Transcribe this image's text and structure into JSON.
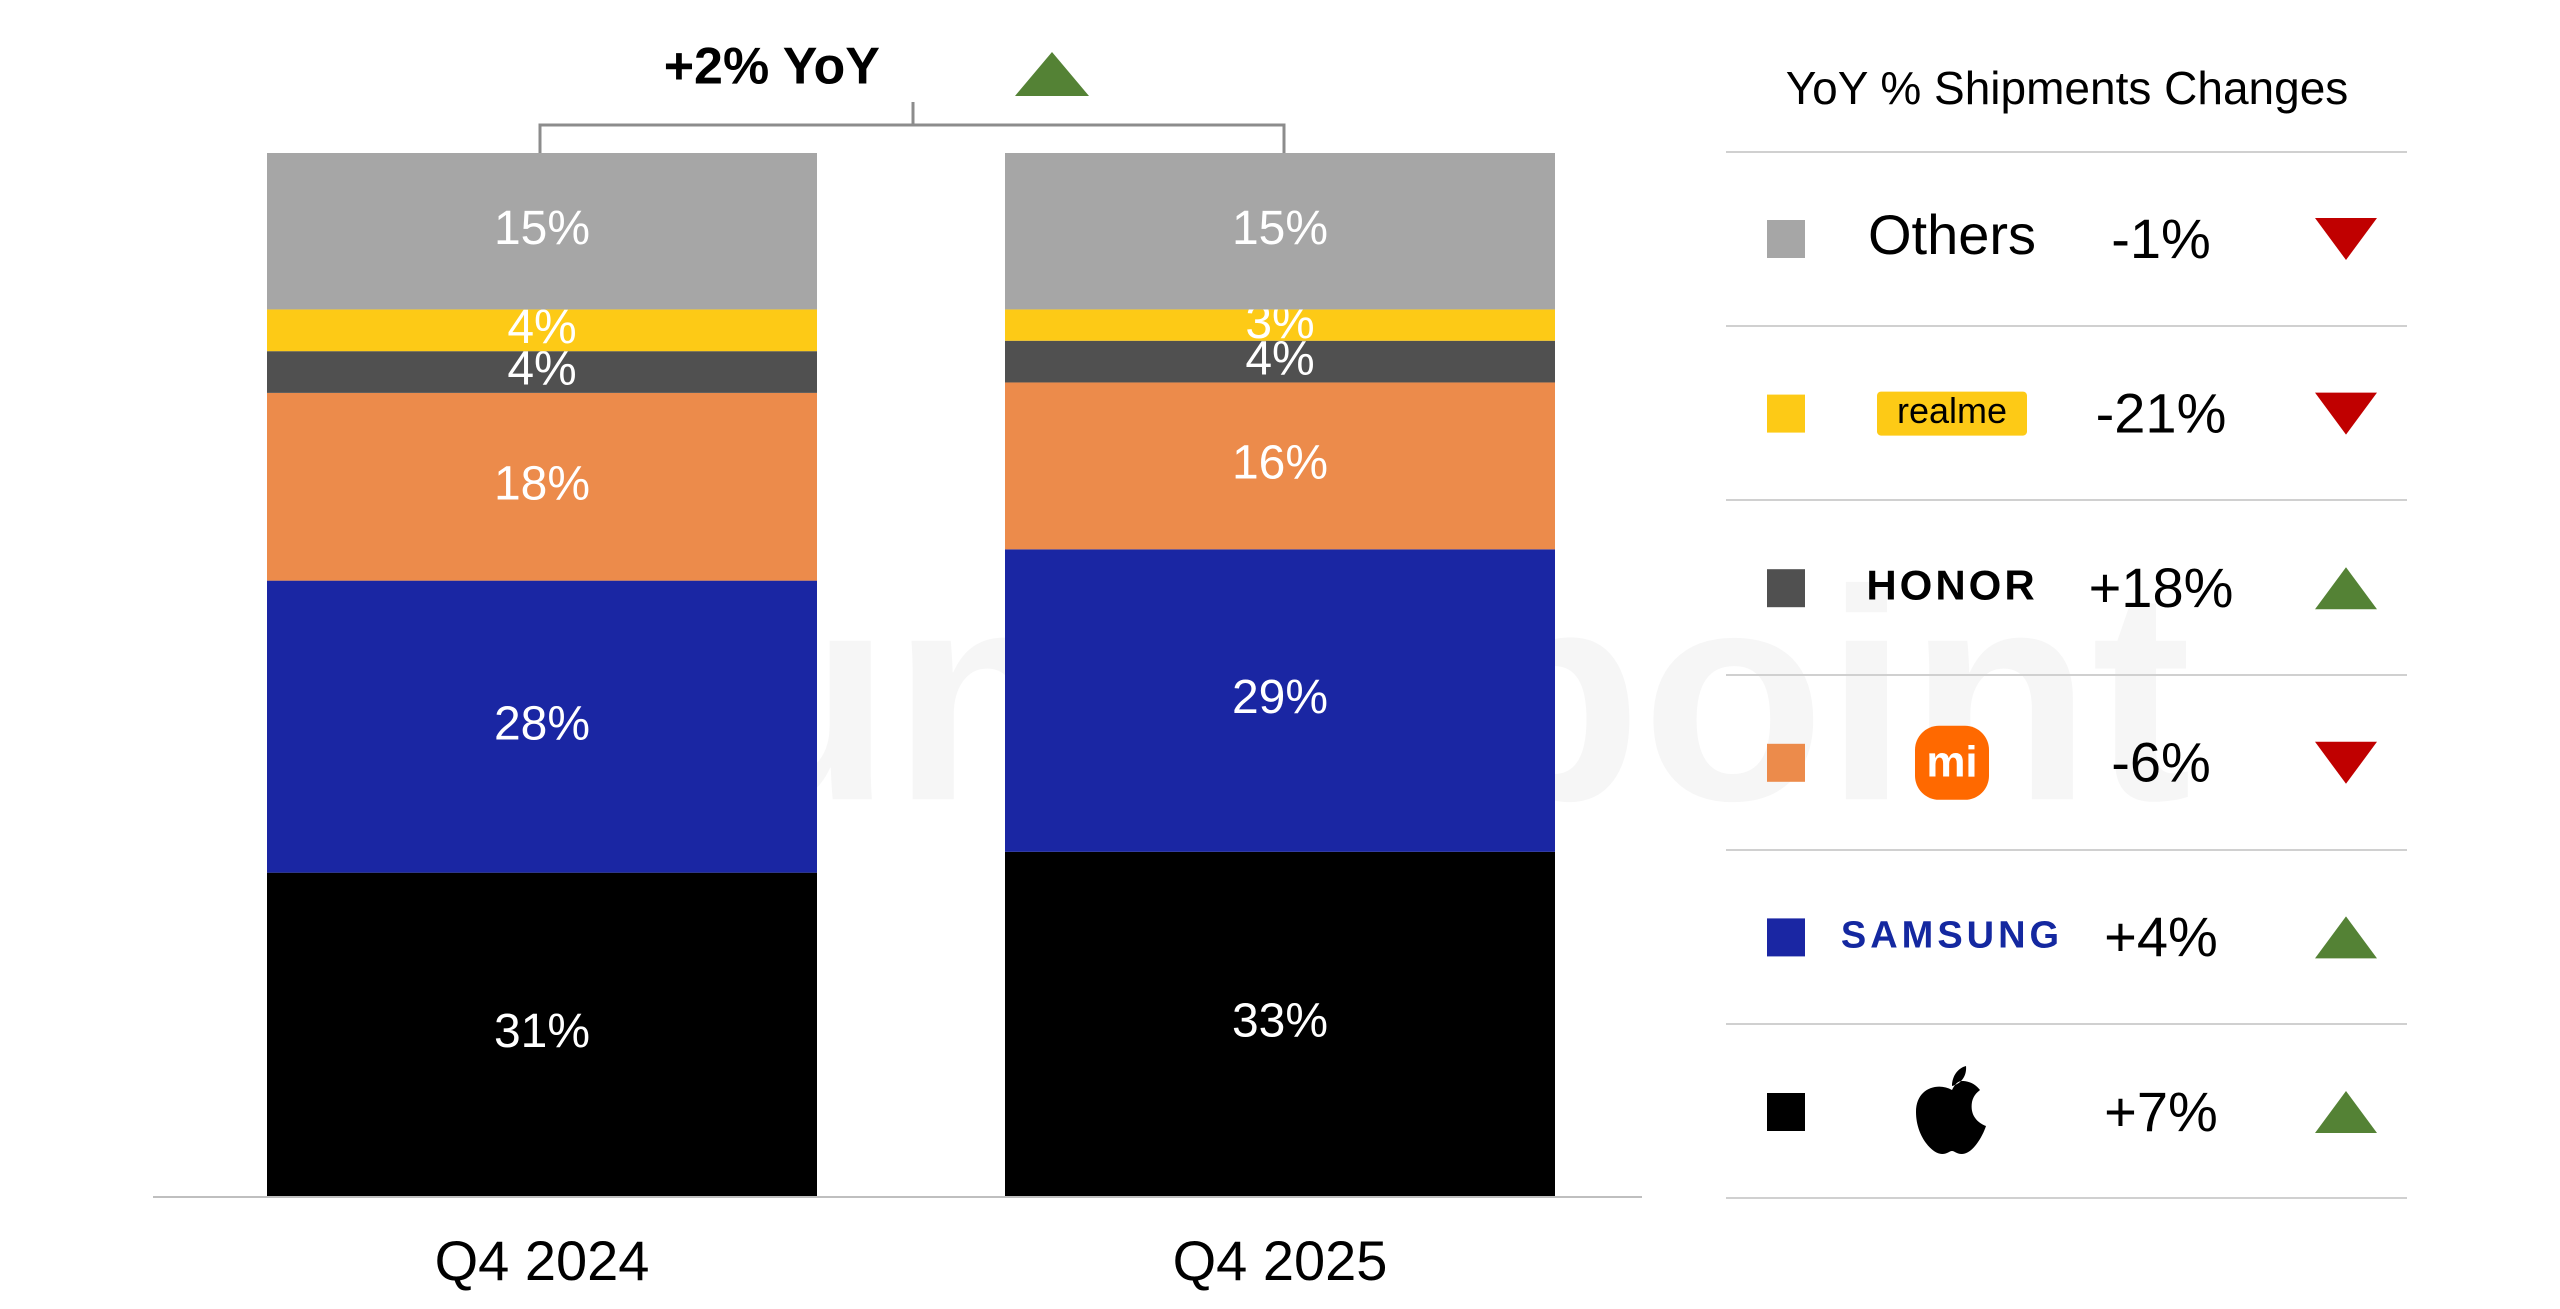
{
  "chart_data": {
    "type": "stacked_bar",
    "title": "+2% YoY",
    "watermark": "Counterpoint",
    "categories": [
      "Q4 2024",
      "Q4 2025"
    ],
    "ylim": [
      0,
      100
    ],
    "legend_title": "YoY % Shipments Changes",
    "series": [
      {
        "name": null,
        "color": "#000000",
        "values": [
          31,
          33
        ],
        "value_labels": [
          "31%",
          "33%"
        ],
        "change": 7,
        "change_label": "+7%"
      },
      {
        "name": "SAMSUNG",
        "color": "#1a26a3",
        "values": [
          28,
          29
        ],
        "value_labels": [
          "28%",
          "29%"
        ],
        "change": 4,
        "change_label": "+4%"
      },
      {
        "name": "mi",
        "color": "#ec8b4b",
        "values": [
          18,
          16
        ],
        "value_labels": [
          "18%",
          "16%"
        ],
        "change": -6,
        "change_label": "-6%"
      },
      {
        "name": "HONOR",
        "color": "#505050",
        "values": [
          4,
          4
        ],
        "value_labels": [
          "4%",
          "4%"
        ],
        "change": 18,
        "change_label": "+18%"
      },
      {
        "name": "realme",
        "color": "#fdca16",
        "values": [
          4,
          3
        ],
        "value_labels": [
          "4%",
          "3%"
        ],
        "change": -21,
        "change_label": "-21%"
      },
      {
        "name": "Others",
        "color": "#a6a6a6",
        "values": [
          15,
          15
        ],
        "value_labels": [
          "15%",
          "15%"
        ],
        "change": -1,
        "change_label": "-1%"
      }
    ]
  }
}
